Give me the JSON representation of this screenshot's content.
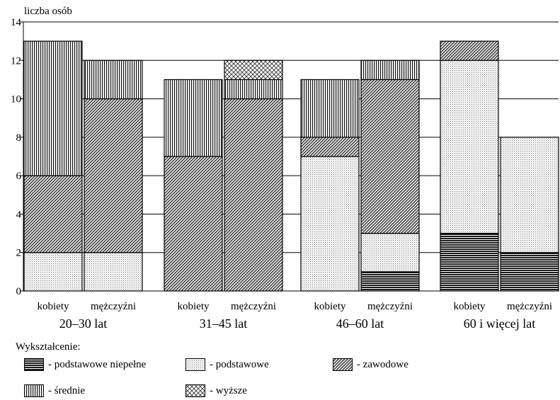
{
  "chart_data": {
    "type": "bar",
    "stacked": true,
    "ylabel": "liczba osób",
    "ylim": [
      0,
      14
    ],
    "yticks": [
      "0",
      "2",
      "4",
      "6",
      "8",
      "10",
      "12",
      "14"
    ],
    "grid": true,
    "groups": [
      {
        "label": "20–30 lat",
        "bars": [
          {
            "label": "kobiety",
            "values": {
              "podstawowe_niepelne": 0,
              "podstawowe": 2,
              "zawodowe": 4,
              "srednie": 7,
              "wyzsze": 0
            }
          },
          {
            "label": "mężczyźni",
            "values": {
              "podstawowe_niepelne": 0,
              "podstawowe": 2,
              "zawodowe": 8,
              "srednie": 2,
              "wyzsze": 0
            }
          }
        ]
      },
      {
        "label": "31–45 lat",
        "bars": [
          {
            "label": "kobiety",
            "values": {
              "podstawowe_niepelne": 0,
              "podstawowe": 0,
              "zawodowe": 7,
              "srednie": 4,
              "wyzsze": 0
            }
          },
          {
            "label": "mężczyźni",
            "values": {
              "podstawowe_niepelne": 0,
              "podstawowe": 0,
              "zawodowe": 10,
              "srednie": 1,
              "wyzsze": 1
            }
          }
        ]
      },
      {
        "label": "46–60 lat",
        "bars": [
          {
            "label": "kobiety",
            "values": {
              "podstawowe_niepelne": 0,
              "podstawowe": 7,
              "zawodowe": 1,
              "srednie": 3,
              "wyzsze": 0
            }
          },
          {
            "label": "mężczyźni",
            "values": {
              "podstawowe_niepelne": 1,
              "podstawowe": 2,
              "zawodowe": 8,
              "srednie": 1,
              "wyzsze": 0
            }
          }
        ]
      },
      {
        "label": "60 i więcej lat",
        "bars": [
          {
            "label": "kobiety",
            "values": {
              "podstawowe_niepelne": 3,
              "podstawowe": 9,
              "zawodowe": 1,
              "srednie": 0,
              "wyzsze": 0
            }
          },
          {
            "label": "mężczyźni",
            "values": {
              "podstawowe_niepelne": 2,
              "podstawowe": 6,
              "zawodowe": 0,
              "srednie": 0,
              "wyzsze": 0
            }
          }
        ]
      }
    ],
    "legend_title": "Wykształcenie:",
    "series": [
      {
        "key": "podstawowe_niepelne",
        "name": "- podstawowe niepełne",
        "pattern": "horizontal-dark"
      },
      {
        "key": "podstawowe",
        "name": "- podstawowe",
        "pattern": "dots"
      },
      {
        "key": "zawodowe",
        "name": "- zawodowe",
        "pattern": "diagonal"
      },
      {
        "key": "srednie",
        "name": "- średnie",
        "pattern": "vertical"
      },
      {
        "key": "wyzsze",
        "name": "- wyższe",
        "pattern": "crosshatch"
      }
    ]
  }
}
